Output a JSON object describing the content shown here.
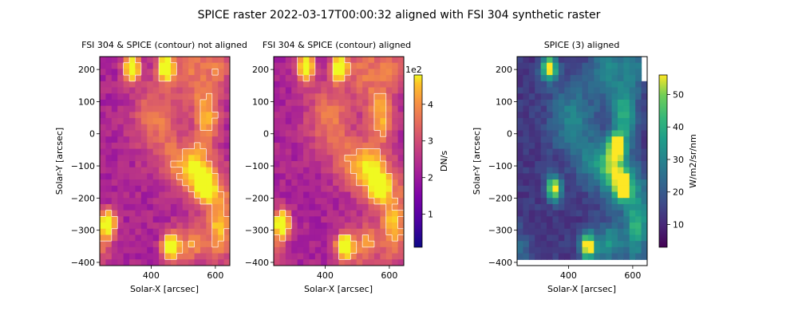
{
  "figure_title": "SPICE raster 2022-03-17T00:00:32 aligned with FSI 304 synthetic raster",
  "chart_data": [
    {
      "type": "heatmap",
      "title": "FSI 304 & SPICE (contour) not aligned",
      "xlabel": "Solar-X [arcsec]",
      "ylabel": "Solar-Y [arcsec]",
      "xlim": [
        240,
        645
      ],
      "ylim": [
        -410,
        240
      ],
      "xticks": [
        400,
        600
      ],
      "yticks": [
        200,
        100,
        0,
        -100,
        -200,
        -300,
        -400
      ],
      "colormap": "plasma",
      "contour_color": "#ffffff",
      "bright_spots": [
        [
          340,
          205
        ],
        [
          445,
          205
        ],
        [
          570,
          -165
        ],
        [
          460,
          -350
        ],
        [
          265,
          -280
        ]
      ]
    },
    {
      "type": "heatmap",
      "title": "FSI 304 & SPICE (contour) aligned",
      "xlabel": "Solar-X [arcsec]",
      "ylabel": "",
      "xlim": [
        240,
        645
      ],
      "ylim": [
        -410,
        240
      ],
      "xticks": [
        400,
        600
      ],
      "yticks": [
        200,
        100,
        0,
        -100,
        -200,
        -300,
        -400
      ],
      "colormap": "plasma",
      "contour_color": "#ffffff",
      "bright_spots": [
        [
          340,
          205
        ],
        [
          445,
          205
        ],
        [
          570,
          -165
        ],
        [
          460,
          -350
        ],
        [
          265,
          -280
        ]
      ]
    },
    {
      "type": "heatmap",
      "title": "SPICE (3) aligned",
      "xlabel": "Solar-X [arcsec]",
      "ylabel": "Solar-Y [arcsec]",
      "xlim": [
        240,
        645
      ],
      "ylim": [
        -410,
        240
      ],
      "xticks": [
        400,
        600
      ],
      "yticks": [
        200,
        100,
        0,
        -100,
        -200,
        -300,
        -400
      ],
      "colormap": "viridis",
      "bright_spots": [
        [
          340,
          205
        ],
        [
          570,
          -165
        ],
        [
          460,
          -350
        ],
        [
          355,
          -170
        ],
        [
          550,
          -35
        ]
      ]
    }
  ],
  "colorbars": [
    {
      "label": "DN/s",
      "offset_text": "1e2",
      "ticks": [
        1,
        2,
        3,
        4
      ],
      "range": [
        0.1,
        4.8
      ],
      "colormap": "plasma"
    },
    {
      "label": "W/m2/sr/nm",
      "ticks": [
        10,
        20,
        30,
        40,
        50
      ],
      "range": [
        3,
        56
      ],
      "colormap": "viridis"
    }
  ]
}
